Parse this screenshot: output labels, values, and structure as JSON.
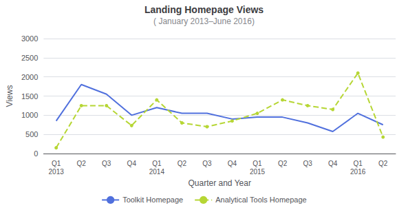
{
  "chart_data": {
    "type": "line",
    "title": "Landing Homepage Views",
    "subtitle": "( January 2013–June 2016)",
    "x_label": "Quarter and Year",
    "y_label": "Views",
    "categories": [
      "Q1\n2013",
      "Q2",
      "Q3",
      "Q4",
      "Q1\n2014",
      "Q2",
      "Q3",
      "Q4",
      "Q1\n2015",
      "Q2",
      "Q3",
      "Q4",
      "Q1\n2016",
      "Q2"
    ],
    "series": [
      {
        "name": "Toolkit Homepage",
        "line_style": "solid",
        "marker": "none",
        "values": [
          850,
          1800,
          1550,
          1000,
          1200,
          1050,
          1050,
          900,
          950,
          950,
          800,
          575,
          1050,
          750
        ]
      },
      {
        "name": "Analytical Tools Homepage",
        "line_style": "dashed",
        "marker": "circle",
        "values": [
          150,
          1250,
          1250,
          730,
          1400,
          800,
          700,
          850,
          1050,
          1400,
          1250,
          1150,
          2100,
          430
        ]
      }
    ],
    "ylim": [
      0,
      3000
    ],
    "yticks": [
      0,
      500,
      1000,
      1500,
      2000,
      2500,
      3000
    ],
    "grid": true,
    "legend": "bottom"
  }
}
